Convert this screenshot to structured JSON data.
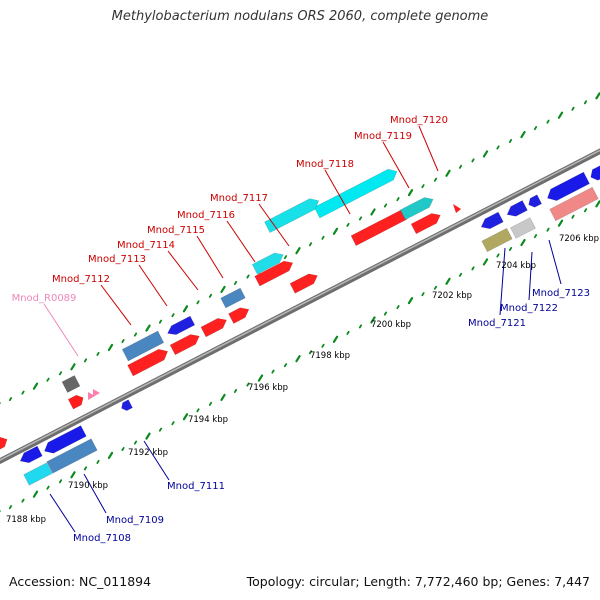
{
  "title": "Methylobacterium nodulans ORS 2060, complete genome",
  "footer": {
    "accession": "Accession: NC_011894",
    "summary": "Topology: circular; Length: 7,772,460 bp; Genes: 7,447"
  },
  "colors": {
    "backbone": "#8a8a8a",
    "tick": "#0b8a1e",
    "label_forward": "#cc0000",
    "label_reverse": "#000099",
    "label_rna": "#ee88bb",
    "kbp_label": "#000000"
  },
  "scale_labels": [
    "7188 kbp",
    "7190 kbp",
    "7192 kbp",
    "7194 kbp",
    "7196 kbp",
    "7198 kbp",
    "7200 kbp",
    "7202 kbp",
    "7204 kbp",
    "7206 kbp"
  ],
  "gene_labels": [
    {
      "text": "Mnod_R0089",
      "strand": "rna"
    },
    {
      "text": "Mnod_7112",
      "strand": "forward"
    },
    {
      "text": "Mnod_7113",
      "strand": "forward"
    },
    {
      "text": "Mnod_7114",
      "strand": "forward"
    },
    {
      "text": "Mnod_7115",
      "strand": "forward"
    },
    {
      "text": "Mnod_7116",
      "strand": "forward"
    },
    {
      "text": "Mnod_7117",
      "strand": "forward"
    },
    {
      "text": "Mnod_7118",
      "strand": "forward"
    },
    {
      "text": "Mnod_7119",
      "strand": "forward"
    },
    {
      "text": "Mnod_7120",
      "strand": "forward"
    },
    {
      "text": "Mnod_7111",
      "strand": "reverse"
    },
    {
      "text": "Mnod_7109",
      "strand": "reverse"
    },
    {
      "text": "Mnod_7108",
      "strand": "reverse"
    },
    {
      "text": "Mnod_7121",
      "strand": "reverse"
    },
    {
      "text": "Mnod_7122",
      "strand": "reverse"
    },
    {
      "text": "Mnod_7123",
      "strand": "reverse"
    }
  ]
}
